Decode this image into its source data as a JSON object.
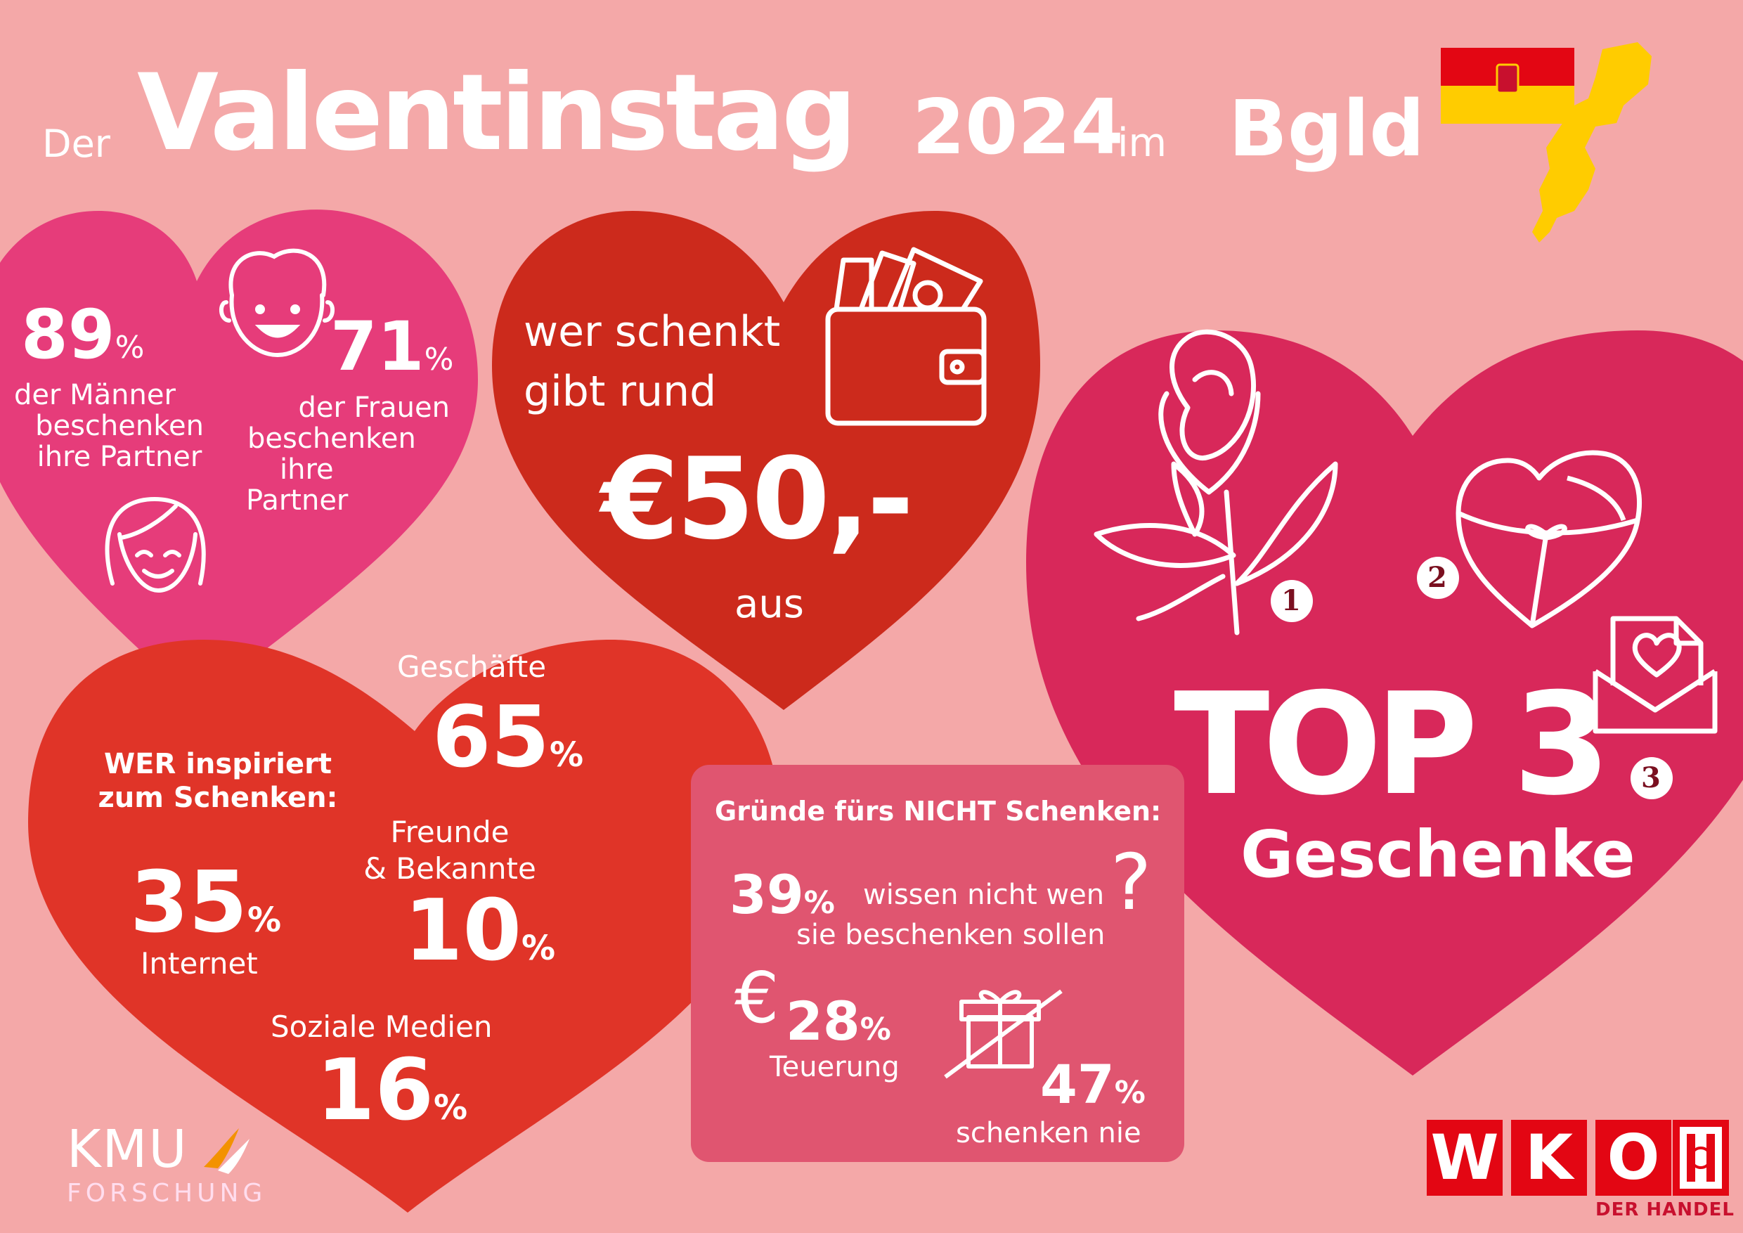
{
  "header": {
    "prefix": "Der",
    "title": "Valentinstag",
    "year": "2024",
    "mid": "im",
    "region": "Bgld"
  },
  "partners": {
    "men_value": "89",
    "men_pct": "%",
    "men_text": [
      "der Männer",
      "beschenken",
      "ihre Partner"
    ],
    "women_value": "71",
    "women_pct": "%",
    "women_text": [
      "der Frauen",
      "beschenken",
      "ihre",
      "Partner"
    ]
  },
  "spend": {
    "line1": "wer schenkt",
    "line2": "gibt rund",
    "amount": "€50,-",
    "suffix": "aus"
  },
  "inspire": {
    "heading1": "WER inspiriert",
    "heading2": "zum Schenken:",
    "shops_label": "Geschäfte",
    "shops_value": "65",
    "friends_label1": "Freunde",
    "friends_label2": "& Bekannte",
    "friends_value": "10",
    "internet_value": "35",
    "internet_label": "Internet",
    "social_label": "Soziale Medien",
    "social_value": "16",
    "pct": "%"
  },
  "reasons": {
    "heading": "Gründe fürs NICHT Schenken:",
    "r1_value": "39",
    "r1_text1": "wissen nicht wen",
    "r1_text2": "sie beschenken sollen",
    "r2_symbol": "€",
    "r2_value": "28",
    "r2_label": "Teuerung",
    "r3_value": "47",
    "r3_label": "schenken nie",
    "pct": "%"
  },
  "top3": {
    "title": "TOP 3",
    "subtitle": "Geschenke",
    "rank1": "1",
    "rank2": "2",
    "rank3": "3"
  },
  "logos": {
    "kmu_line1": "KMU",
    "kmu_line2": "FORSCHUNG",
    "wko_letters": [
      "W",
      "K",
      "O"
    ],
    "wko_sub": "DER HANDEL"
  },
  "colors": {
    "background": "#f4a8a8",
    "heart_pink": "#e63c7a",
    "heart_red": "#cc2a1c",
    "heart_orange": "#e03428",
    "heart_magenta": "#d8285a",
    "box": "#e05570",
    "rank_text": "#7a1020",
    "wko_red": "#e30613"
  }
}
